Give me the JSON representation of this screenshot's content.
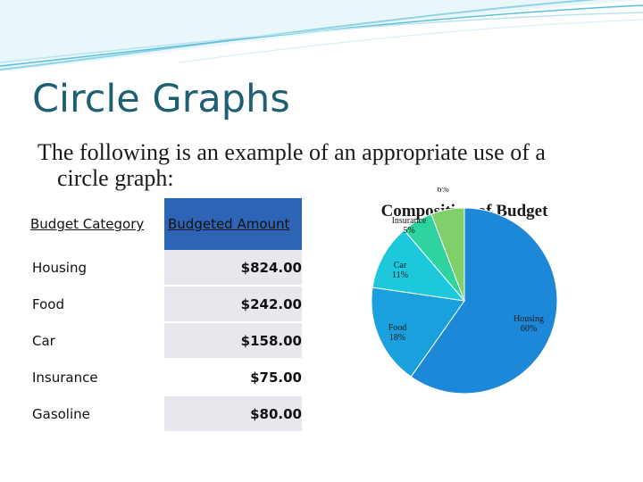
{
  "slide": {
    "title": "Circle Graphs",
    "intro_line1": "The following is an example of an appropriate use of a",
    "intro_line2": "circle graph:"
  },
  "table": {
    "headers": [
      "Budget Category",
      "Budgeted Amount"
    ],
    "rows": [
      {
        "category": "Housing",
        "amount": "$824.00"
      },
      {
        "category": "Food",
        "amount": "$242.00"
      },
      {
        "category": "Car",
        "amount": "$158.00"
      },
      {
        "category": "Insurance",
        "amount": "$75.00"
      },
      {
        "category": "Gasoline",
        "amount": "$80.00"
      }
    ]
  },
  "colors": {
    "accent": "#1f5f73",
    "header_fill": "#2e64b6",
    "row_fill": "#e6e8ee",
    "housing": "#1e88d8",
    "food": "#1aa0dc",
    "car": "#1ec8dc",
    "insurance": "#2ed3a0",
    "gasoline": "#7fcf6a"
  },
  "chart_data": {
    "type": "pie",
    "title": "Composition of Budget",
    "slices": [
      {
        "label": "Housing",
        "value": 824,
        "percent": "60%",
        "color": "#1e88d8"
      },
      {
        "label": "Food",
        "value": 242,
        "percent": "18%",
        "color": "#1aa0dc"
      },
      {
        "label": "Car",
        "value": 158,
        "percent": "11%",
        "color": "#1ec8dc"
      },
      {
        "label": "Insurance",
        "value": 75,
        "percent": "5%",
        "color": "#2ed3a0"
      },
      {
        "label": "Gasoline",
        "value": 80,
        "percent": "6%",
        "color": "#7fcf6a"
      }
    ]
  }
}
